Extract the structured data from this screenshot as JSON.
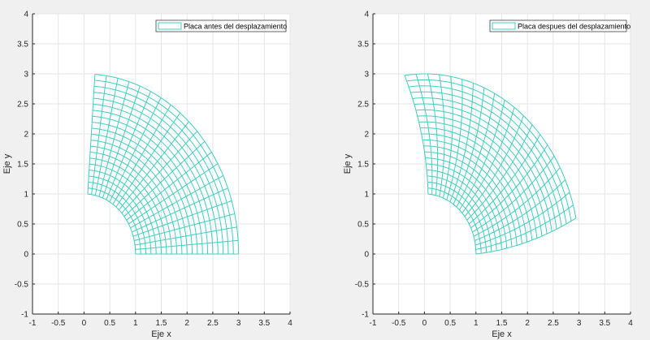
{
  "chart_data": [
    {
      "type": "line",
      "mesh": "annular-sector",
      "legend": "Placa antes del desplazamiento",
      "legend_placement": "top-right",
      "xlabel": "Eje x",
      "ylabel": "Eje y",
      "xlim": [
        -1,
        4
      ],
      "ylim": [
        -1,
        4
      ],
      "xticks": [
        "-1",
        "-0.5",
        "0",
        "0.5",
        "1",
        "1.5",
        "2",
        "2.5",
        "3",
        "3.5",
        "4"
      ],
      "yticks": [
        "-1",
        "-0.5",
        "0",
        "0.5",
        "1",
        "1.5",
        "2",
        "2.5",
        "3",
        "3.5",
        "4"
      ],
      "grid": true,
      "inner_radius": 1,
      "outer_radius": 3,
      "theta_range_rad": [
        0,
        1.5
      ],
      "radial_divisions": 20,
      "angular_divisions": 20,
      "twist_rad_per_unit_radius": 0,
      "color": "#3fcfc0"
    },
    {
      "type": "line",
      "mesh": "annular-sector",
      "legend": "Placa despues del desplazamiento",
      "legend_placement": "top-right",
      "xlabel": "Eje x",
      "ylabel": "Eje y",
      "xlim": [
        -1,
        4
      ],
      "ylim": [
        -1,
        4
      ],
      "xticks": [
        "-1",
        "-0.5",
        "0",
        "0.5",
        "1",
        "1.5",
        "2",
        "2.5",
        "3",
        "3.5",
        "4"
      ],
      "yticks": [
        "-1",
        "-0.5",
        "0",
        "0.5",
        "1",
        "1.5",
        "2",
        "2.5",
        "3",
        "3.5",
        "4"
      ],
      "grid": true,
      "inner_radius": 1,
      "outer_radius": 3,
      "theta_range_rad": [
        0,
        1.5
      ],
      "radial_divisions": 20,
      "angular_divisions": 20,
      "twist_rad_per_unit_radius": 0.1,
      "color": "#3fcfc0"
    }
  ]
}
